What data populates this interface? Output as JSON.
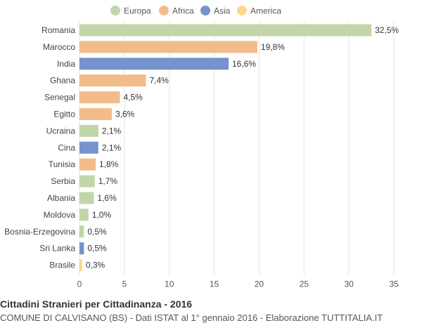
{
  "chart_data": {
    "type": "bar",
    "orientation": "horizontal",
    "legend": {
      "position": "top",
      "entries": [
        {
          "name": "Europa",
          "color": "#c1d5a9"
        },
        {
          "name": "Africa",
          "color": "#f2bc8a"
        },
        {
          "name": "Asia",
          "color": "#7593cc"
        },
        {
          "name": "America",
          "color": "#fcd88f"
        }
      ]
    },
    "categories": [
      "Romania",
      "Marocco",
      "India",
      "Ghana",
      "Senegal",
      "Egitto",
      "Ucraina",
      "Cina",
      "Tunisia",
      "Serbia",
      "Albania",
      "Moldova",
      "Bosnia-Erzegovina",
      "Sri Lanka",
      "Brasile"
    ],
    "values": [
      32.5,
      19.8,
      16.6,
      7.4,
      4.5,
      3.6,
      2.1,
      2.1,
      1.8,
      1.7,
      1.6,
      1.0,
      0.5,
      0.5,
      0.3
    ],
    "value_labels": [
      "32,5%",
      "19,8%",
      "16,6%",
      "7,4%",
      "4,5%",
      "3,6%",
      "2,1%",
      "2,1%",
      "1,8%",
      "1,7%",
      "1,6%",
      "1,0%",
      "0,5%",
      "0,5%",
      "0,3%"
    ],
    "groups": [
      "Europa",
      "Africa",
      "Asia",
      "Africa",
      "Africa",
      "Africa",
      "Europa",
      "Asia",
      "Africa",
      "Europa",
      "Europa",
      "Europa",
      "Europa",
      "Asia",
      "America"
    ],
    "xlim": [
      0,
      35
    ],
    "xticks": [
      0,
      5,
      10,
      15,
      20,
      25,
      30,
      35
    ],
    "grid": true,
    "title": "Cittadini Stranieri per Cittadinanza - 2016",
    "subtitle": "COMUNE DI CALVISANO (BS) - Dati ISTAT al 1° gennaio 2016 - Elaborazione TUTTITALIA.IT"
  }
}
